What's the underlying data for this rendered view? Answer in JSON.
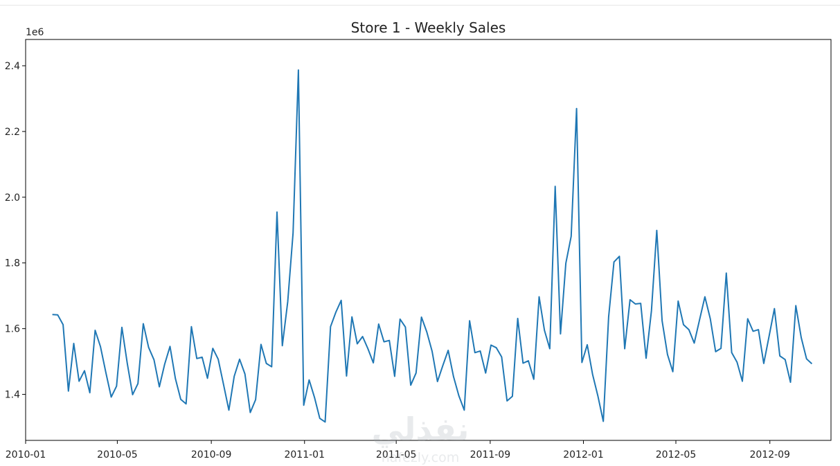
{
  "chart_data": {
    "type": "line",
    "title": "Store 1 - Weekly Sales",
    "xlabel": "",
    "ylabel": "",
    "y_offset_label": "1e6",
    "x_ticks": [
      "2010-01",
      "2010-05",
      "2010-09",
      "2011-01",
      "2011-05",
      "2011-09",
      "2012-01",
      "2012-05",
      "2012-09"
    ],
    "y_ticks": [
      "1.4",
      "1.6",
      "1.8",
      "2.0",
      "2.2",
      "2.4"
    ],
    "ylim": [
      1.26,
      2.48
    ],
    "xlim": [
      "2010-01-01",
      "2012-11-20"
    ],
    "grid": false,
    "color": "#1f77b4",
    "series": [
      {
        "start_date": "2010-02-05",
        "interval_days": 7,
        "values": [
          1.643,
          1.642,
          1.612,
          1.41,
          1.555,
          1.44,
          1.472,
          1.405,
          1.595,
          1.545,
          1.466,
          1.392,
          1.425,
          1.604,
          1.494,
          1.399,
          1.433,
          1.615,
          1.543,
          1.505,
          1.423,
          1.492,
          1.546,
          1.448,
          1.385,
          1.371,
          1.606,
          1.509,
          1.513,
          1.449,
          1.54,
          1.507,
          1.43,
          1.352,
          1.455,
          1.507,
          1.462,
          1.345,
          1.384,
          1.552,
          1.494,
          1.484,
          1.955,
          1.548,
          1.682,
          1.891,
          2.387,
          1.367,
          1.444,
          1.391,
          1.327,
          1.316,
          1.606,
          1.65,
          1.686,
          1.456,
          1.636,
          1.554,
          1.576,
          1.539,
          1.496,
          1.614,
          1.56,
          1.564,
          1.455,
          1.629,
          1.605,
          1.428,
          1.465,
          1.635,
          1.59,
          1.531,
          1.439,
          1.488,
          1.534,
          1.454,
          1.396,
          1.352,
          1.624,
          1.527,
          1.532,
          1.465,
          1.55,
          1.542,
          1.514,
          1.38,
          1.394,
          1.631,
          1.495,
          1.502,
          1.446,
          1.697,
          1.595,
          1.539,
          2.033,
          1.584,
          1.799,
          1.881,
          2.27,
          1.497,
          1.551,
          1.461,
          1.394,
          1.318,
          1.636,
          1.803,
          1.82,
          1.539,
          1.688,
          1.675,
          1.677,
          1.51,
          1.654,
          1.899,
          1.624,
          1.521,
          1.469,
          1.684,
          1.612,
          1.597,
          1.556,
          1.627,
          1.697,
          1.63,
          1.53,
          1.54,
          1.769,
          1.527,
          1.498,
          1.44,
          1.63,
          1.592,
          1.597,
          1.494,
          1.577,
          1.661,
          1.517,
          1.506,
          1.437,
          1.67,
          1.573,
          1.508,
          1.493
        ]
      }
    ]
  },
  "watermark": {
    "text": "نفذلي",
    "subtext": "nafezly.com"
  }
}
